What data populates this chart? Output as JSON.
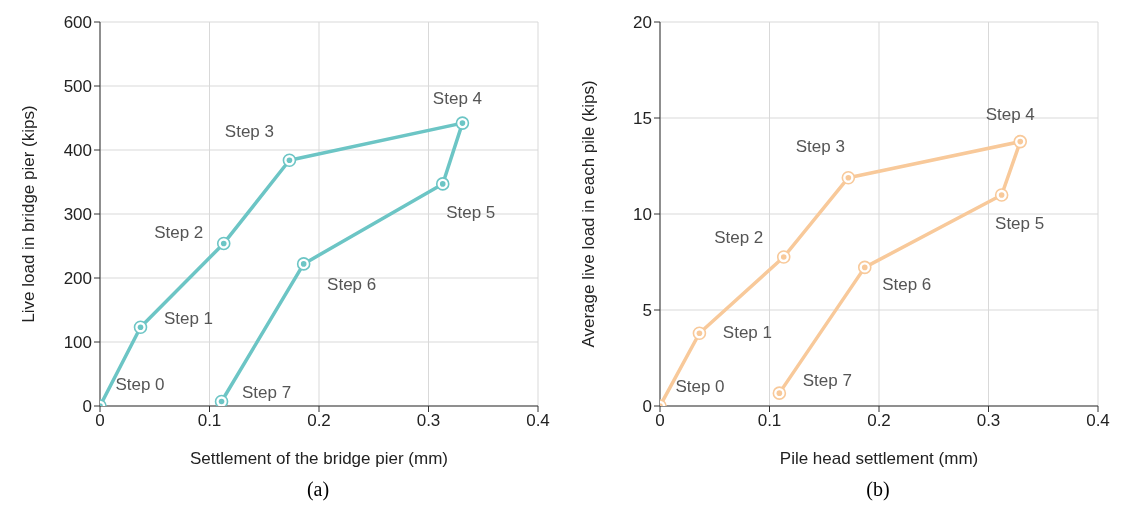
{
  "chart_data": [
    {
      "type": "line",
      "title": "(a)",
      "xlabel": "Settlement of the bridge pier (mm)",
      "ylabel": "Live load in bridge pier (kips)",
      "series": [
        {
          "color": "#6cc5c5",
          "x": [
            0,
            0.037,
            0.113,
            0.173,
            0.331,
            0.313,
            0.186,
            0.111
          ],
          "values": [
            0,
            123,
            254,
            384,
            442,
            347,
            222,
            7
          ]
        }
      ],
      "xlim": [
        0,
        0.4
      ],
      "xticks": [
        0,
        0.1,
        0.2,
        0.3,
        0.4
      ],
      "ylim": [
        0,
        600
      ],
      "yticks": [
        0,
        100,
        200,
        300,
        400,
        500,
        600
      ],
      "grid": true,
      "marker": "circle",
      "line_style": "solid",
      "annotations": [
        {
          "text": "Step 0",
          "x": 0,
          "y": 0
        },
        {
          "text": "Step 1",
          "x": 0.037,
          "y": 123
        },
        {
          "text": "Step 2",
          "x": 0.113,
          "y": 254
        },
        {
          "text": "Step 3",
          "x": 0.173,
          "y": 384
        },
        {
          "text": "Step 4",
          "x": 0.331,
          "y": 442
        },
        {
          "text": "Step 5",
          "x": 0.313,
          "y": 347
        },
        {
          "text": "Step 6",
          "x": 0.186,
          "y": 222
        },
        {
          "text": "Step 7",
          "x": 0.111,
          "y": 7
        }
      ]
    },
    {
      "type": "line",
      "title": "(b)",
      "xlabel": "Pile head settlement (mm)",
      "ylabel": "Average live load in each pile (kips)",
      "series": [
        {
          "color": "#f8c99a",
          "x": [
            0,
            0.036,
            0.113,
            0.172,
            0.329,
            0.312,
            0.187,
            0.109
          ],
          "values": [
            0,
            3.79,
            7.76,
            11.89,
            13.77,
            10.99,
            7.22,
            0.67
          ]
        }
      ],
      "xlim": [
        0,
        0.4
      ],
      "xticks": [
        0,
        0.1,
        0.2,
        0.3,
        0.4
      ],
      "ylim": [
        0,
        20
      ],
      "yticks": [
        0,
        5,
        10,
        15,
        20
      ],
      "grid": true,
      "marker": "circle",
      "line_style": "solid",
      "annotations": [
        {
          "text": "Step 0",
          "x": 0,
          "y": 0
        },
        {
          "text": "Step 1",
          "x": 0.036,
          "y": 3.79
        },
        {
          "text": "Step 2",
          "x": 0.113,
          "y": 7.76
        },
        {
          "text": "Step 3",
          "x": 0.172,
          "y": 11.89
        },
        {
          "text": "Step 4",
          "x": 0.329,
          "y": 13.77
        },
        {
          "text": "Step 5",
          "x": 0.312,
          "y": 10.99
        },
        {
          "text": "Step 6",
          "x": 0.187,
          "y": 7.22
        },
        {
          "text": "Step 7",
          "x": 0.109,
          "y": 0.67
        }
      ]
    }
  ]
}
